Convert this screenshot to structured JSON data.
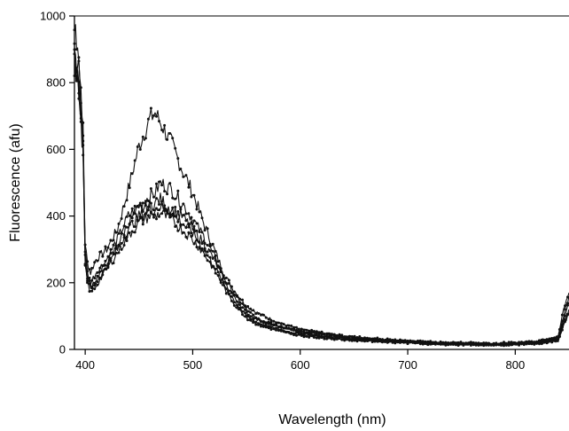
{
  "chart_data": {
    "type": "line",
    "title": "",
    "xlabel": "Wavelength (nm)",
    "ylabel": "Fluorescence (afu)",
    "xlim": [
      390,
      850
    ],
    "ylim": [
      0,
      1000
    ],
    "x_ticks": [
      400,
      500,
      600,
      700,
      800
    ],
    "y_ticks": [
      0,
      200,
      400,
      600,
      800,
      1000
    ],
    "grid": false,
    "legend": "none",
    "line_color": "#111111",
    "series": [
      {
        "x": [
          390,
          392,
          394,
          396,
          398,
          400,
          402,
          405,
          410,
          420,
          430,
          440,
          450,
          460,
          465,
          470,
          480,
          490,
          500,
          510,
          520,
          530,
          540,
          550,
          560,
          580,
          600,
          620,
          640,
          660,
          680,
          700,
          720,
          740,
          760,
          780,
          800,
          820,
          840,
          845,
          850
        ],
        "y": [
          900,
          860,
          880,
          720,
          620,
          320,
          260,
          230,
          270,
          300,
          360,
          480,
          610,
          690,
          710,
          680,
          620,
          540,
          470,
          380,
          300,
          220,
          170,
          130,
          110,
          80,
          60,
          50,
          40,
          35,
          30,
          25,
          22,
          20,
          20,
          18,
          20,
          25,
          40,
          120,
          170
        ]
      },
      {
        "x": [
          390,
          392,
          394,
          396,
          398,
          400,
          402,
          405,
          410,
          420,
          430,
          440,
          450,
          460,
          465,
          470,
          480,
          490,
          500,
          510,
          520,
          530,
          540,
          550,
          560,
          580,
          600,
          620,
          640,
          660,
          680,
          700,
          720,
          740,
          760,
          780,
          800,
          820,
          840,
          845,
          850
        ],
        "y": [
          980,
          920,
          870,
          760,
          680,
          300,
          230,
          200,
          230,
          270,
          330,
          400,
          430,
          460,
          470,
          500,
          480,
          440,
          390,
          340,
          280,
          210,
          160,
          120,
          90,
          70,
          55,
          45,
          40,
          30,
          28,
          24,
          20,
          18,
          17,
          16,
          18,
          22,
          30,
          90,
          140
        ]
      },
      {
        "x": [
          390,
          392,
          394,
          396,
          398,
          400,
          402,
          405,
          410,
          420,
          430,
          440,
          450,
          460,
          465,
          470,
          480,
          490,
          500,
          510,
          520,
          530,
          540,
          550,
          560,
          580,
          600,
          620,
          640,
          660,
          680,
          700,
          720,
          740,
          760,
          780,
          800,
          820,
          840,
          845,
          850
        ],
        "y": [
          880,
          850,
          820,
          740,
          640,
          280,
          220,
          190,
          210,
          260,
          310,
          380,
          420,
          430,
          440,
          450,
          420,
          400,
          360,
          320,
          270,
          200,
          150,
          110,
          90,
          70,
          50,
          40,
          35,
          30,
          27,
          25,
          20,
          18,
          16,
          15,
          17,
          20,
          35,
          100,
          160
        ]
      },
      {
        "x": [
          390,
          392,
          394,
          396,
          398,
          400,
          402,
          405,
          410,
          420,
          430,
          440,
          450,
          460,
          465,
          470,
          480,
          490,
          500,
          510,
          520,
          530,
          540,
          550,
          560,
          580,
          600,
          620,
          640,
          660,
          680,
          700,
          720,
          740,
          760,
          780,
          800,
          820,
          840,
          845,
          850
        ],
        "y": [
          860,
          830,
          800,
          700,
          610,
          260,
          210,
          180,
          200,
          250,
          300,
          360,
          400,
          420,
          420,
          430,
          410,
          380,
          350,
          300,
          250,
          190,
          140,
          100,
          80,
          60,
          45,
          38,
          32,
          28,
          25,
          22,
          18,
          16,
          15,
          14,
          16,
          19,
          28,
          80,
          120
        ]
      },
      {
        "x": [
          390,
          392,
          394,
          396,
          398,
          400,
          402,
          405,
          410,
          420,
          430,
          440,
          450,
          460,
          465,
          470,
          480,
          490,
          500,
          510,
          520,
          530,
          540,
          550,
          560,
          580,
          600,
          620,
          640,
          660,
          680,
          700,
          720,
          740,
          760,
          780,
          800,
          820,
          840,
          845,
          850
        ],
        "y": [
          840,
          820,
          780,
          680,
          590,
          250,
          200,
          170,
          190,
          240,
          290,
          340,
          380,
          400,
          400,
          410,
          390,
          360,
          330,
          290,
          240,
          180,
          130,
          95,
          75,
          55,
          42,
          35,
          30,
          26,
          23,
          20,
          16,
          15,
          14,
          13,
          15,
          18,
          25,
          70,
          110
        ]
      }
    ]
  }
}
